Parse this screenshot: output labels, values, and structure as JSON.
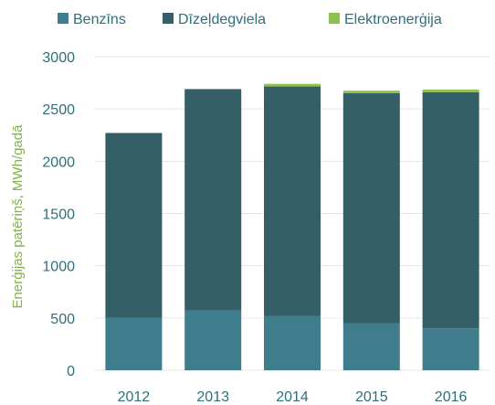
{
  "chart_data": {
    "type": "bar",
    "stacked": true,
    "categories": [
      "2012",
      "2013",
      "2014",
      "2015",
      "2016"
    ],
    "series": [
      {
        "name": "Benzīns",
        "values": [
          500,
          570,
          520,
          450,
          400
        ],
        "color": "#3f7d8c"
      },
      {
        "name": "Dīzeļdegviela",
        "values": [
          1770,
          2120,
          2195,
          2200,
          2260
        ],
        "color": "#355f66"
      },
      {
        "name": "Elektroenerģija",
        "values": [
          0,
          0,
          25,
          25,
          25
        ],
        "color": "#8cc152"
      }
    ],
    "title": "",
    "xlabel": "",
    "ylabel": "Enerģijas patēriņš, MWh/gadā",
    "ylim": [
      0,
      3000
    ],
    "yticks": [
      0,
      500,
      1000,
      1500,
      2000,
      2500,
      3000
    ],
    "grid": true,
    "legend_position": "top",
    "colors": {
      "tick_text": "#2f6e7a",
      "ylabel_text": "#7fb24d",
      "legend_text": "#2f6e7a",
      "grid": "#e6e6e6",
      "background": "#ffffff"
    }
  }
}
